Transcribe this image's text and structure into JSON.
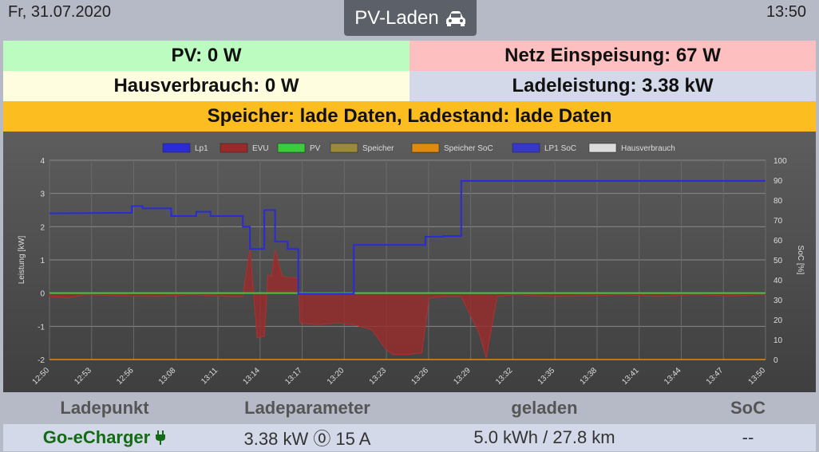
{
  "header": {
    "date": "Fr, 31.07.2020",
    "title": "PV-Laden",
    "time": "13:50"
  },
  "status": {
    "pv": "PV: 0 W",
    "netz": "Netz Einspeisung: 67 W",
    "haus": "Hausverbrauch: 0 W",
    "lade": "Ladeleistung: 3.38 kW",
    "speicher": "Speicher: lade Daten, Ladestand: lade Daten"
  },
  "colors": {
    "pv": "#bdfcc0",
    "netz": "#fdbfbf",
    "haus": "#fefde0",
    "lade": "#d4d9e9",
    "speicher": "#fbbd20",
    "lp1": "#2b2bd6",
    "evu": "#9a2a2a",
    "pv_line": "#3bcc3b",
    "speicher_line": "#9a8a3a",
    "soc_line": "#e08a10",
    "lp1soc": "#3838c8",
    "haus_line": "#dcdcdc"
  },
  "chart_data": {
    "type": "line",
    "legend": [
      "Lp1",
      "EVU",
      "PV",
      "Speicher",
      "Speicher SoC",
      "LP1 SoC",
      "Hausverbrauch"
    ],
    "legend_position": "top",
    "ylabel": "Leistung [kW]",
    "y2label": "SoC [%]",
    "ylim": [
      -2,
      4
    ],
    "y2lim": [
      0,
      100
    ],
    "yticks": [
      "4",
      "3",
      "2",
      "1",
      "0",
      "-1",
      "-2"
    ],
    "y2ticks": [
      "100",
      "90",
      "80",
      "70",
      "60",
      "50",
      "40",
      "30",
      "20",
      "10",
      "0"
    ],
    "xticks": [
      "12:50",
      "12:53",
      "12:56",
      "13:08",
      "13:11",
      "13:14",
      "13:17",
      "13:20",
      "13:23",
      "13:26",
      "13:29",
      "13:32",
      "13:35",
      "13:38",
      "13:41",
      "13:44",
      "13:47",
      "13:50"
    ],
    "grid": true,
    "series": [
      {
        "name": "Lp1",
        "x": [
          0,
          2.3,
          2.3,
          2.6,
          2.6,
          3.4,
          3.4,
          4.1,
          4.1,
          4.5,
          4.5,
          5.4,
          5.4,
          5.6,
          5.6,
          6.0,
          6.0,
          6.3,
          6.3,
          6.65,
          6.65,
          6.95,
          6.95,
          8.5,
          8.5,
          10.5,
          10.5,
          11.0,
          11.0,
          11.5,
          11.5,
          12.5,
          12.5,
          20
        ],
        "values": [
          2.4,
          2.42,
          2.62,
          2.62,
          2.55,
          2.55,
          2.32,
          2.32,
          2.45,
          2.45,
          2.32,
          2.32,
          2.0,
          2.0,
          1.33,
          1.33,
          2.5,
          2.5,
          1.55,
          1.55,
          1.33,
          1.33,
          -0.02,
          -0.02,
          1.45,
          1.45,
          1.7,
          1.7,
          1.72,
          1.72,
          3.38,
          3.38,
          3.38,
          3.38
        ]
      },
      {
        "name": "EVU",
        "x": [
          0,
          0.5,
          1,
          2,
          3,
          4,
          5,
          5.4,
          5.6,
          5.8,
          6.0,
          6.1,
          6.2,
          6.3,
          6.5,
          6.95,
          7.0,
          7.5,
          8,
          8.5,
          9,
          9.4,
          9.6,
          10,
          10.4,
          10.6,
          11,
          11.5,
          12.0,
          12.2,
          12.5,
          13,
          14,
          15,
          16,
          17,
          18,
          19,
          20
        ],
        "values": [
          -0.1,
          -0.15,
          -0.05,
          -0.08,
          -0.1,
          -0.05,
          -0.1,
          -0.1,
          1.35,
          -1.35,
          -1.3,
          0.55,
          0.5,
          1.3,
          0.5,
          0.45,
          -0.9,
          -0.95,
          -0.9,
          -0.95,
          -1.1,
          -1.7,
          -1.85,
          -1.85,
          -1.8,
          -0.15,
          -0.1,
          -0.1,
          -1.2,
          -1.95,
          -0.1,
          -0.05,
          -0.1,
          -0.08,
          -0.05,
          -0.1,
          -0.05,
          -0.08,
          -0.05
        ]
      },
      {
        "name": "PV",
        "x": [
          0,
          20
        ],
        "values": [
          0,
          0
        ]
      }
    ]
  },
  "table": {
    "headers": [
      "Ladepunkt",
      "Ladeparameter",
      "geladen",
      "SoC"
    ],
    "row": {
      "name": "Go-eCharger",
      "param": "3.38 kW ⓪ 15 A",
      "charged": "5.0 kWh / 27.8 km",
      "soc": "--"
    }
  }
}
